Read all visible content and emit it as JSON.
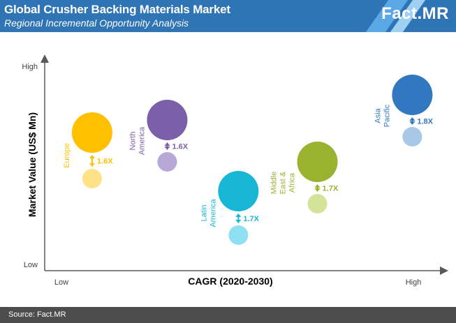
{
  "header": {
    "title": "Global Crusher Backing Materials Market",
    "subtitle": "Regional Incremental Opportunity Analysis",
    "logo": "Fact.MR",
    "colors": {
      "background": "#2f74b5",
      "stripe_light": "#5aa9e6",
      "stripe_pale": "#9fd0f2"
    }
  },
  "footer": {
    "source": "Source: Fact.MR"
  },
  "chart_data": {
    "type": "bubble",
    "xlabel": "CAGR (2020-2030)",
    "ylabel": "Market Value (US$ Mn)",
    "x_ticks": [
      "Low",
      "High"
    ],
    "y_ticks": [
      "Low",
      "High"
    ],
    "grid": false,
    "regions": [
      {
        "name": "Europe",
        "lines": [
          "Europe"
        ],
        "multiplier": "1.6X",
        "x": 0.12,
        "y_big": 0.66,
        "y_small": 0.44,
        "color": "#ffc000",
        "color_small": "#ffe285"
      },
      {
        "name": "North America",
        "lines": [
          "North",
          "America"
        ],
        "multiplier": "1.6X",
        "x": 0.31,
        "y_big": 0.72,
        "y_small": 0.52,
        "color": "#7b5fa8",
        "color_small": "#b8a8d6"
      },
      {
        "name": "Latin America",
        "lines": [
          "Latin",
          "America"
        ],
        "multiplier": "1.7X",
        "x": 0.49,
        "y_big": 0.38,
        "y_small": 0.17,
        "color": "#18b7d6",
        "color_small": "#8fe0f0"
      },
      {
        "name": "Middle East & Africa",
        "lines": [
          "Middle",
          "East &",
          "Africa"
        ],
        "multiplier": "1.7X",
        "x": 0.69,
        "y_big": 0.52,
        "y_small": 0.32,
        "color": "#99b331",
        "color_small": "#d3e39a"
      },
      {
        "name": "Asia Pacific",
        "lines": [
          "Asia",
          "Pacific"
        ],
        "multiplier": "1.8X",
        "x": 0.93,
        "y_big": 0.84,
        "y_small": 0.64,
        "color": "#3278c0",
        "color_small": "#a7c8e6"
      }
    ]
  }
}
